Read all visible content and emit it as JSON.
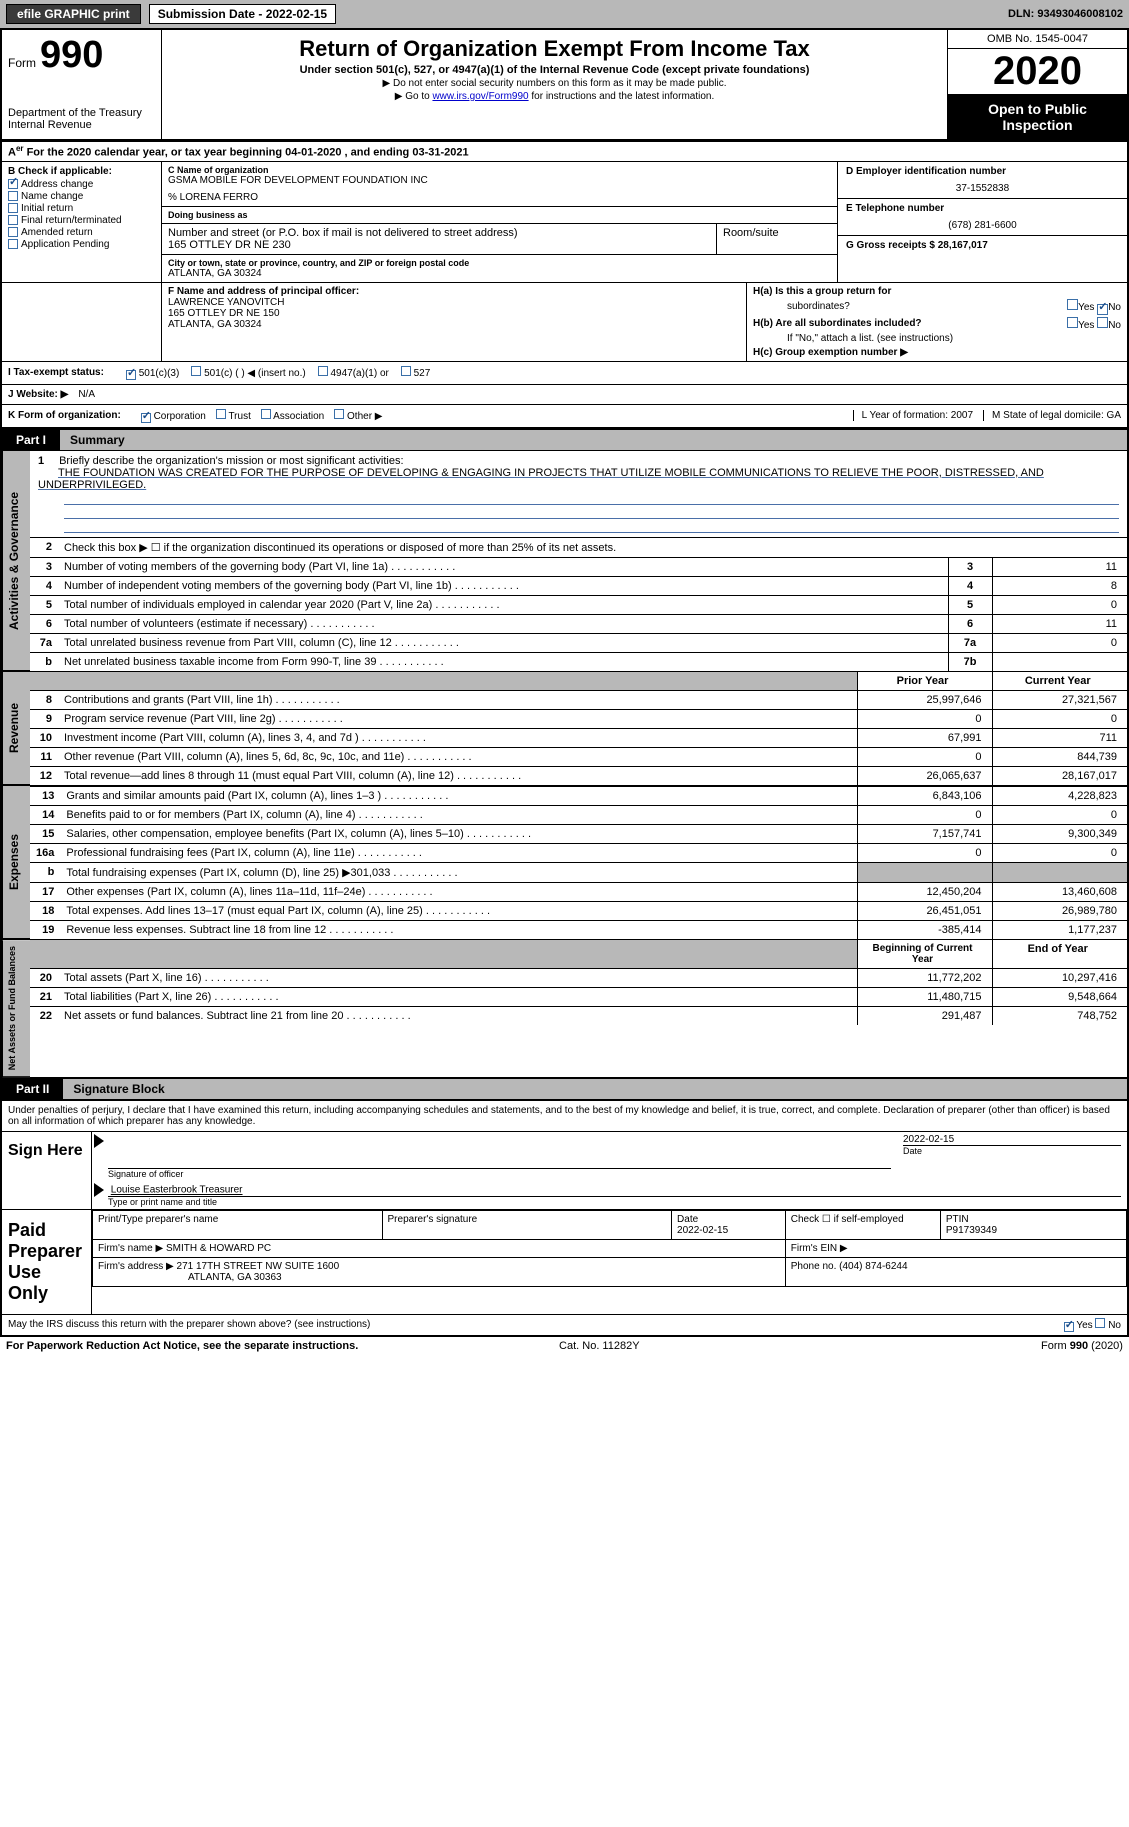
{
  "topbar": {
    "efile_label": "efile GRAPHIC print",
    "sub_date_label": "Submission Date - 2022-02-15",
    "dln": "DLN: 93493046008102"
  },
  "header": {
    "form_word": "Form",
    "form_num": "990",
    "dept": "Department of the Treasury\nInternal Revenue",
    "title": "Return of Organization Exempt From Income Tax",
    "subtitle": "Under section 501(c), 527, or 4947(a)(1) of the Internal Revenue Code (except private foundations)",
    "line1": "Do not enter social security numbers on this form as it may be made public.",
    "line2_pre": "Go to ",
    "line2_link": "www.irs.gov/Form990",
    "line2_post": " for instructions and the latest information.",
    "omb": "OMB No. 1545-0047",
    "year": "2020",
    "open": "Open to Public Inspection"
  },
  "row_a": "For the 2020 calendar year, or tax year beginning 04-01-2020    , and ending 03-31-2021",
  "box_b": {
    "label": "B Check if applicable:",
    "opts": [
      "Address change",
      "Name change",
      "Initial return",
      "Final return/terminated",
      "Amended return",
      "Application Pending"
    ],
    "checked_idx": 0
  },
  "box_c": {
    "lab_name": "C Name of organization",
    "name": "GSMA MOBILE FOR DEVELOPMENT FOUNDATION INC",
    "care_of": "% LORENA FERRO",
    "dba_lab": "Doing business as",
    "addr_lab": "Number and street (or P.O. box if mail is not delivered to street address)",
    "addr": "165 OTTLEY DR NE 230",
    "room_lab": "Room/suite",
    "city_lab": "City or town, state or province, country, and ZIP or foreign postal code",
    "city": "ATLANTA, GA  30324"
  },
  "box_d": {
    "lab": "D Employer identification number",
    "val": "37-1552838"
  },
  "box_e": {
    "lab": "E Telephone number",
    "val": "(678) 281-6600"
  },
  "box_g": {
    "lab": "G Gross receipts $ 28,167,017"
  },
  "box_f": {
    "lab": "F  Name and address of principal officer:",
    "name": "LAWRENCE YANOVITCH",
    "addr1": "165 OTTLEY DR NE 150",
    "addr2": "ATLANTA, GA  30324"
  },
  "box_h": {
    "ha": "H(a)  Is this a group return for",
    "ha2": "subordinates?",
    "hb": "H(b)  Are all subordinates included?",
    "hb2": "If \"No,\" attach a list. (see instructions)",
    "hc": "H(c)  Group exemption number ▶",
    "yes": "Yes",
    "no": "No"
  },
  "row_i": {
    "lab": "I    Tax-exempt status:",
    "opts": [
      "501(c)(3)",
      "501(c) (  ) ◀ (insert no.)",
      "4947(a)(1) or",
      "527"
    ]
  },
  "row_j": {
    "lab": "J    Website: ▶",
    "val": "N/A"
  },
  "row_k": {
    "lab": "K Form of organization:",
    "opts": [
      "Corporation",
      "Trust",
      "Association",
      "Other ▶"
    ],
    "l_year": "L Year of formation: 2007",
    "m_state": "M State of legal domicile: GA"
  },
  "part1": {
    "tab": "Part I",
    "title": "Summary"
  },
  "mission": {
    "num": "1",
    "lead": "Briefly describe the organization's mission or most significant activities:",
    "text": "THE FOUNDATION WAS CREATED FOR THE PURPOSE OF DEVELOPING & ENGAGING IN PROJECTS THAT UTILIZE MOBILE COMMUNICATIONS TO RELIEVE THE POOR, DISTRESSED, AND UNDERPRIVILEGED."
  },
  "gov_rows": [
    {
      "n": "2",
      "d": "Check this box ▶ ☐  if the organization discontinued its operations or disposed of more than 25% of its net assets.",
      "box": "",
      "v": ""
    },
    {
      "n": "3",
      "d": "Number of voting members of the governing body (Part VI, line 1a)",
      "box": "3",
      "v": "11"
    },
    {
      "n": "4",
      "d": "Number of independent voting members of the governing body (Part VI, line 1b)",
      "box": "4",
      "v": "8"
    },
    {
      "n": "5",
      "d": "Total number of individuals employed in calendar year 2020 (Part V, line 2a)",
      "box": "5",
      "v": "0"
    },
    {
      "n": "6",
      "d": "Total number of volunteers (estimate if necessary)",
      "box": "6",
      "v": "11"
    },
    {
      "n": "7a",
      "d": "Total unrelated business revenue from Part VIII, column (C), line 12",
      "box": "7a",
      "v": "0"
    },
    {
      "n": "b",
      "d": "Net unrelated business taxable income from Form 990-T, line 39",
      "box": "7b",
      "v": ""
    }
  ],
  "col_hdr": {
    "prior": "Prior Year",
    "curr": "Current Year"
  },
  "rev_rows": [
    {
      "n": "8",
      "d": "Contributions and grants (Part VIII, line 1h)",
      "p": "25,997,646",
      "c": "27,321,567"
    },
    {
      "n": "9",
      "d": "Program service revenue (Part VIII, line 2g)",
      "p": "0",
      "c": "0"
    },
    {
      "n": "10",
      "d": "Investment income (Part VIII, column (A), lines 3, 4, and 7d )",
      "p": "67,991",
      "c": "711"
    },
    {
      "n": "11",
      "d": "Other revenue (Part VIII, column (A), lines 5, 6d, 8c, 9c, 10c, and 11e)",
      "p": "0",
      "c": "844,739"
    },
    {
      "n": "12",
      "d": "Total revenue—add lines 8 through 11 (must equal Part VIII, column (A), line 12)",
      "p": "26,065,637",
      "c": "28,167,017"
    }
  ],
  "exp_rows": [
    {
      "n": "13",
      "d": "Grants and similar amounts paid (Part IX, column (A), lines 1–3 )",
      "p": "6,843,106",
      "c": "4,228,823"
    },
    {
      "n": "14",
      "d": "Benefits paid to or for members (Part IX, column (A), line 4)",
      "p": "0",
      "c": "0"
    },
    {
      "n": "15",
      "d": "Salaries, other compensation, employee benefits (Part IX, column (A), lines 5–10)",
      "p": "7,157,741",
      "c": "9,300,349"
    },
    {
      "n": "16a",
      "d": "Professional fundraising fees (Part IX, column (A), line 11e)",
      "p": "0",
      "c": "0"
    },
    {
      "n": "b",
      "d": "Total fundraising expenses (Part IX, column (D), line 25) ▶301,033",
      "p": "",
      "c": "",
      "gray": true
    },
    {
      "n": "17",
      "d": "Other expenses (Part IX, column (A), lines 11a–11d, 11f–24e)",
      "p": "12,450,204",
      "c": "13,460,608"
    },
    {
      "n": "18",
      "d": "Total expenses. Add lines 13–17 (must equal Part IX, column (A), line 25)",
      "p": "26,451,051",
      "c": "26,989,780"
    },
    {
      "n": "19",
      "d": "Revenue less expenses. Subtract line 18 from line 12",
      "p": "-385,414",
      "c": "1,177,237"
    }
  ],
  "net_hdr": {
    "beg": "Beginning of Current Year",
    "end": "End of Year"
  },
  "net_rows": [
    {
      "n": "20",
      "d": "Total assets (Part X, line 16)",
      "p": "11,772,202",
      "c": "10,297,416"
    },
    {
      "n": "21",
      "d": "Total liabilities (Part X, line 26)",
      "p": "11,480,715",
      "c": "9,548,664"
    },
    {
      "n": "22",
      "d": "Net assets or fund balances. Subtract line 21 from line 20",
      "p": "291,487",
      "c": "748,752"
    }
  ],
  "part2": {
    "tab": "Part II",
    "title": "Signature Block"
  },
  "sig": {
    "declare": "Under penalties of perjury, I declare that I have examined this return, including accompanying schedules and statements, and to the best of my knowledge and belief, it is true, correct, and complete. Declaration of preparer (other than officer) is based on all information of which preparer has any knowledge.",
    "sign_here": "Sign Here",
    "sig_officer": "Signature of officer",
    "date": "Date",
    "date_val": "2022-02-15",
    "name_title": "Louise Easterbrook  Treasurer",
    "type_name": "Type or print name and title",
    "paid": "Paid Preparer Use Only",
    "pt_name": "Print/Type preparer's name",
    "p_sig": "Preparer's signature",
    "p_date": "Date\n2022-02-15",
    "check_self": "Check ☐ if self-employed",
    "ptin_lab": "PTIN",
    "ptin": "P91739349",
    "firm_name_lab": "Firm's name    ▶",
    "firm_name": "SMITH & HOWARD PC",
    "firm_ein": "Firm's EIN ▶",
    "firm_addr_lab": "Firm's address ▶",
    "firm_addr": "271 17TH STREET NW SUITE 1600",
    "firm_city": "ATLANTA, GA  30363",
    "phone_lab": "Phone no. (404) 874-6244",
    "discuss": "May the IRS discuss this return with the preparer shown above? (see instructions)"
  },
  "footer": {
    "left": "For Paperwork Reduction Act Notice, see the separate instructions.",
    "mid": "Cat. No. 11282Y",
    "right": "Form 990 (2020)"
  },
  "sidetabs": {
    "gov": "Activities & Governance",
    "rev": "Revenue",
    "exp": "Expenses",
    "net": "Net Assets or Fund Balances"
  }
}
